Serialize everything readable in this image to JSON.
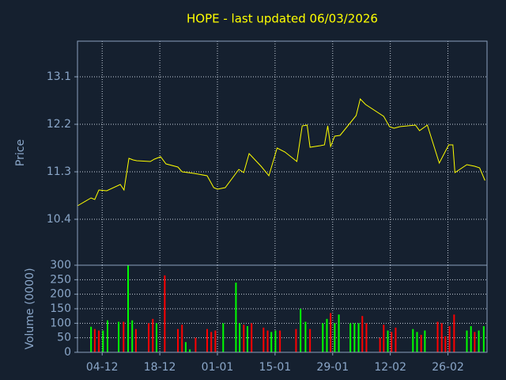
{
  "chart_data": [
    {
      "type": "line",
      "title": "HOPE - last updated 06/03/2026",
      "ylabel": "Price",
      "color": "#ffff00",
      "xlim": [
        0,
        99.5
      ],
      "ylim": [
        9.53,
        13.775
      ],
      "yticks": [
        10.4,
        11.3,
        12.2,
        13.1
      ],
      "grid": true,
      "x": [
        0,
        3.3,
        4.2,
        5.2,
        7.1,
        10.4,
        11.3,
        12.5,
        13.5,
        14.4,
        17.7,
        18.7,
        20.2,
        21.5,
        24.4,
        25.4,
        28.3,
        31.5,
        33.1,
        34.0,
        35.9,
        39.2,
        40.4,
        41.7,
        44.6,
        46.5,
        48.5,
        50.4,
        53.3,
        54.6,
        55.8,
        56.5,
        59.0,
        60.0,
        60.8,
        61.5,
        62.5,
        63.8,
        67.7,
        68.7,
        70.0,
        74.4,
        75.8,
        76.9,
        78.3,
        82.1,
        83.1,
        85.0,
        87.9,
        90.2,
        91.2,
        91.7,
        94.6,
        96.5,
        97.7,
        99.0
      ],
      "values": [
        10.655,
        10.805,
        10.775,
        10.955,
        10.94,
        11.06,
        10.955,
        11.555,
        11.525,
        11.51,
        11.495,
        11.54,
        11.585,
        11.45,
        11.39,
        11.3,
        11.27,
        11.225,
        11.0,
        10.97,
        11.0,
        11.345,
        11.285,
        11.645,
        11.405,
        11.225,
        11.75,
        11.675,
        11.495,
        12.17,
        12.185,
        11.765,
        11.795,
        11.81,
        12.17,
        11.78,
        11.975,
        11.99,
        12.365,
        12.68,
        12.575,
        12.35,
        12.155,
        12.125,
        12.155,
        12.185,
        12.08,
        12.185,
        11.465,
        11.81,
        11.81,
        11.285,
        11.435,
        11.405,
        11.375,
        11.135
      ]
    },
    {
      "type": "bar",
      "ylabel": "Volume (0000)",
      "xlim": [
        0,
        99.5
      ],
      "ylim": [
        0,
        300
      ],
      "yticks": [
        0,
        50,
        100,
        150,
        200,
        250,
        300
      ],
      "grid": true,
      "xticks": [
        {
          "value": 6,
          "label": "04-12"
        },
        {
          "value": 20,
          "label": "18-12"
        },
        {
          "value": 34,
          "label": "01-01"
        },
        {
          "value": 48,
          "label": "15-01"
        },
        {
          "value": 62,
          "label": "29-01"
        },
        {
          "value": 76,
          "label": "12-02"
        },
        {
          "value": 90,
          "label": "26-02"
        }
      ],
      "x": [
        3.3,
        4.2,
        5.2,
        6.2,
        7.3,
        10.0,
        11.2,
        12.3,
        13.3,
        14.2,
        17.3,
        18.3,
        19.2,
        21.2,
        24.4,
        25.4,
        26.3,
        27.3,
        28.7,
        31.5,
        32.5,
        33.5,
        35.4,
        38.5,
        39.4,
        40.4,
        41.3,
        42.3,
        45.2,
        46.2,
        47.1,
        48.1,
        49.2,
        53.1,
        54.2,
        55.4,
        56.5,
        59.6,
        60.6,
        61.5,
        62.5,
        63.5,
        66.3,
        67.3,
        68.3,
        69.2,
        70.2,
        73.5,
        74.4,
        75.4,
        76.3,
        77.3,
        81.5,
        82.5,
        83.5,
        84.4,
        87.5,
        88.5,
        89.4,
        90.4,
        91.5,
        94.6,
        95.6,
        96.5,
        97.5,
        98.7
      ],
      "values": [
        88,
        80,
        75,
        75,
        110,
        105,
        105,
        300,
        110,
        80,
        100,
        115,
        100,
        265,
        80,
        95,
        35,
        10,
        50,
        80,
        70,
        75,
        100,
        240,
        100,
        95,
        90,
        100,
        85,
        75,
        70,
        75,
        75,
        80,
        150,
        105,
        80,
        100,
        115,
        135,
        100,
        130,
        100,
        100,
        100,
        125,
        100,
        50,
        95,
        75,
        70,
        85,
        80,
        70,
        60,
        75,
        105,
        100,
        55,
        90,
        130,
        75,
        90,
        70,
        75,
        90
      ],
      "colors": [
        "#00ff00",
        "#ff0000",
        "#ff0000",
        "#00ff00",
        "#00ff00",
        "#00ff00",
        "#ff0000",
        "#00ff00",
        "#00ff00",
        "#ff0000",
        "#ff0000",
        "#ff0000",
        "#00ff00",
        "#ff0000",
        "#ff0000",
        "#ff0000",
        "#00ff00",
        "#00ff00",
        "#ff0000",
        "#ff0000",
        "#ff0000",
        "#ff0000",
        "#00ff00",
        "#00ff00",
        "#00ff00",
        "#ff0000",
        "#00ff00",
        "#ff0000",
        "#ff0000",
        "#ff0000",
        "#00ff00",
        "#00ff00",
        "#ff0000",
        "#ff0000",
        "#00ff00",
        "#00ff00",
        "#ff0000",
        "#00ff00",
        "#00ff00",
        "#ff0000",
        "#00ff00",
        "#00ff00",
        "#00ff00",
        "#00ff00",
        "#00ff00",
        "#ff0000",
        "#ff0000",
        "#ff0000",
        "#ff0000",
        "#00ff00",
        "#ff0000",
        "#ff0000",
        "#00ff00",
        "#00ff00",
        "#ff0000",
        "#00ff00",
        "#ff0000",
        "#ff0000",
        "#ff0000",
        "#ff0000",
        "#ff0000",
        "#00ff00",
        "#00ff00",
        "#ff0000",
        "#00ff00",
        "#00ff00"
      ]
    }
  ]
}
